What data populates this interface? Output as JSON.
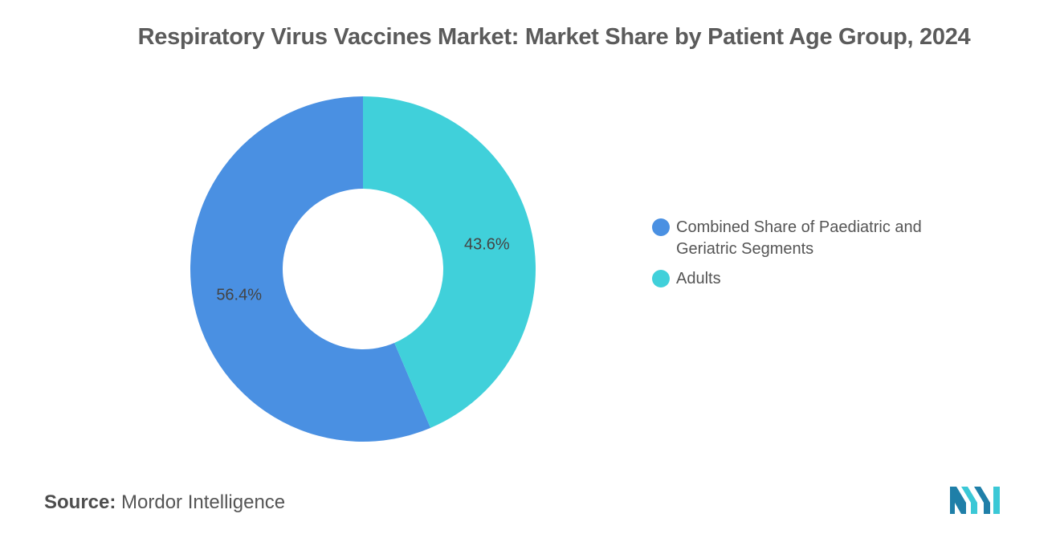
{
  "title": "Respiratory Virus Vaccines Market: Market Share by Patient Age Group, 2024",
  "chart_data": {
    "type": "pie",
    "donut": true,
    "title": "Respiratory Virus Vaccines Market: Market Share by Patient Age Group, 2024",
    "categories": [
      "Combined Share of Paediatric and Geriatric Segments",
      "Adults"
    ],
    "values": [
      56.4,
      43.6
    ],
    "value_labels": [
      "56.4%",
      "43.6%"
    ],
    "colors": [
      "#4a90e2",
      "#40d0da"
    ],
    "legend_position": "right"
  },
  "legend": {
    "items": [
      {
        "label": "Combined Share of Paediatric and Geriatric Segments",
        "color": "#4a90e2"
      },
      {
        "label": "Adults",
        "color": "#40d0da"
      }
    ]
  },
  "source": {
    "label": "Source:",
    "text": "Mordor Intelligence"
  },
  "logo": {
    "icon": "mordor-intelligence-logo",
    "colors": [
      "#1f7fa8",
      "#3bc8d6"
    ]
  }
}
